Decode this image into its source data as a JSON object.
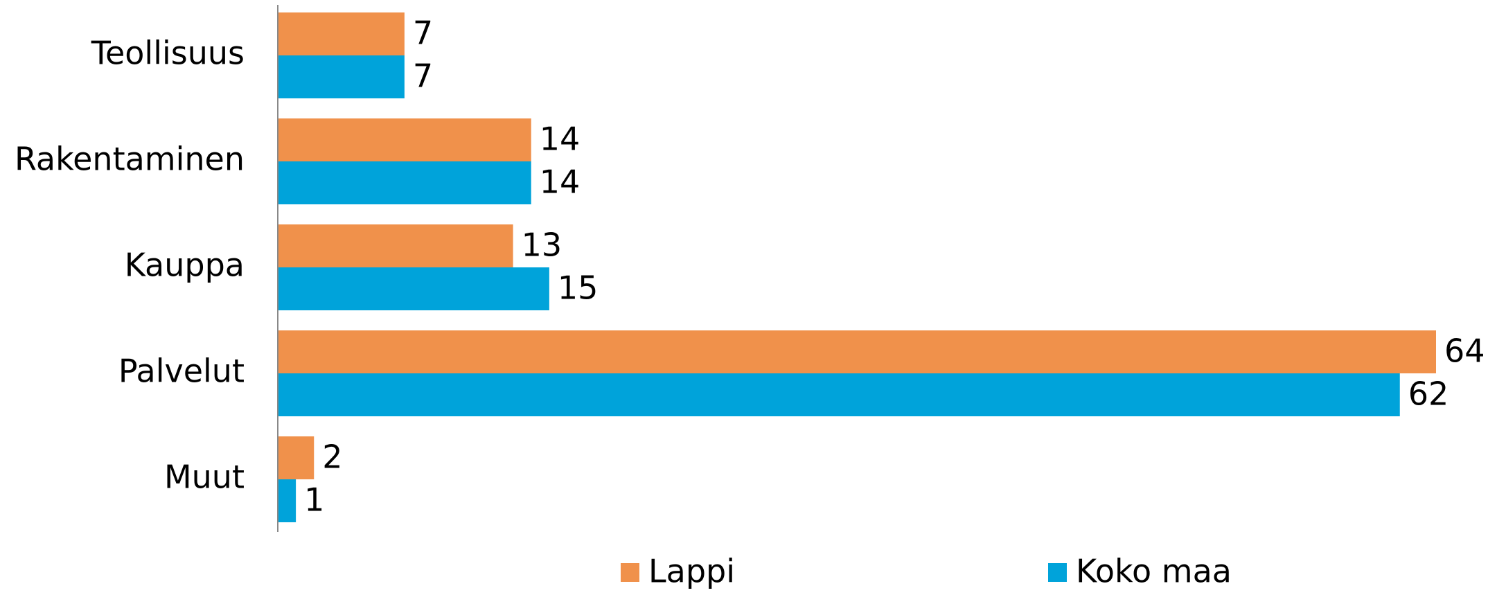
{
  "chart_data": {
    "type": "bar",
    "orientation": "horizontal",
    "categories": [
      "Teollisuus",
      "Rakentaminen",
      "Kauppa",
      "Palvelut",
      "Muut"
    ],
    "series": [
      {
        "name": "Lappi",
        "color": "#f0914b",
        "values": [
          7,
          14,
          13,
          64,
          2
        ]
      },
      {
        "name": "Koko maa",
        "color": "#00a3da",
        "values": [
          7,
          14,
          15,
          62,
          1
        ]
      }
    ],
    "legend": "bottom"
  }
}
